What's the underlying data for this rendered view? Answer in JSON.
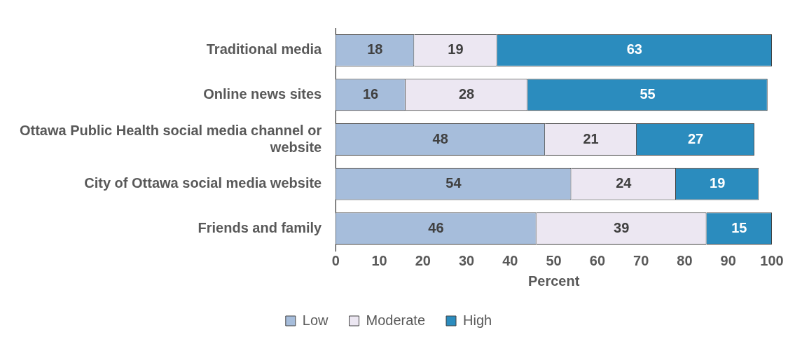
{
  "chart_data": {
    "type": "bar",
    "orientation": "horizontal",
    "stacked": true,
    "xlabel": "Percent",
    "categories": [
      "Traditional media",
      "Online news sites",
      "Ottawa Public Health social media channel or website",
      "City of Ottawa social media website",
      "Friends and family"
    ],
    "series": [
      {
        "name": "Low",
        "color": "#a6bddb",
        "values": [
          18,
          16,
          48,
          54,
          46
        ]
      },
      {
        "name": "Moderate",
        "color": "#ece7f2",
        "values": [
          19,
          28,
          21,
          24,
          39
        ]
      },
      {
        "name": "High",
        "color": "#2b8cbe",
        "values": [
          63,
          55,
          27,
          19,
          15
        ]
      }
    ],
    "xlim": [
      0,
      100
    ],
    "xticks": [
      0,
      10,
      20,
      30,
      40,
      50,
      60,
      70,
      80,
      90,
      100
    ],
    "grid": false,
    "legend": "bottom",
    "data_labels": true
  }
}
